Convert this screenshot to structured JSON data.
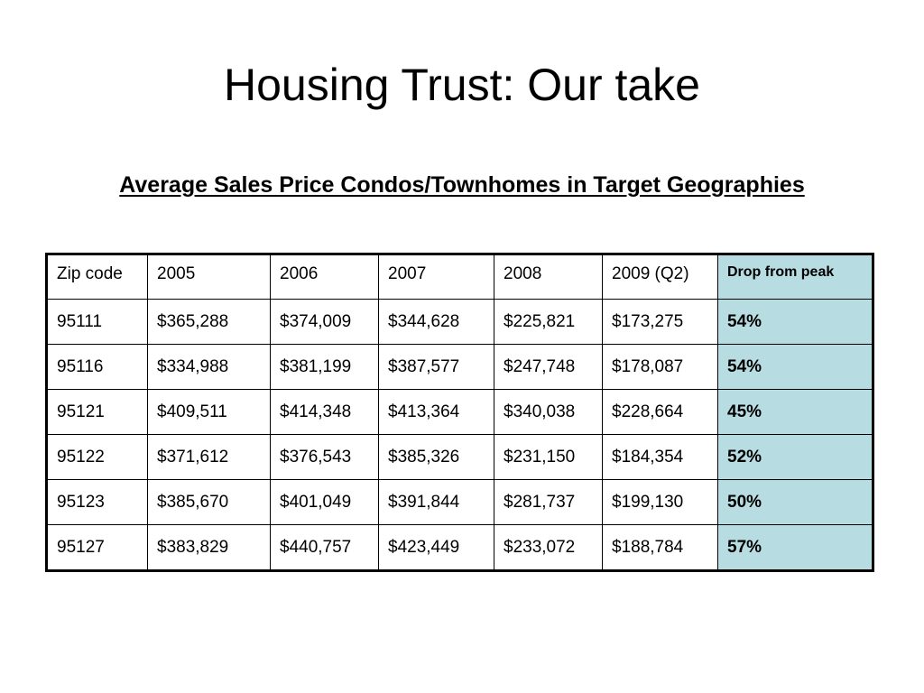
{
  "slide": {
    "title": "Housing Trust: Our take",
    "subtitle": "Average Sales Price Condos/Townhomes in Target Geographies"
  },
  "table": {
    "headers": [
      "Zip code",
      "2005",
      "2006",
      "2007",
      "2008",
      "2009 (Q2)",
      "Drop from peak"
    ],
    "rows": [
      [
        "95111",
        "$365,288",
        "$374,009",
        "$344,628",
        "$225,821",
        "$173,275",
        "54%"
      ],
      [
        "95116",
        "$334,988",
        "$381,199",
        "$387,577",
        "$247,748",
        "$178,087",
        "54%"
      ],
      [
        "95121",
        "$409,511",
        "$414,348",
        "$413,364",
        "$340,038",
        "$228,664",
        "45%"
      ],
      [
        "95122",
        "$371,612",
        "$376,543",
        "$385,326",
        "$231,150",
        "$184,354",
        "52%"
      ],
      [
        "95123",
        "$385,670",
        "$401,049",
        "$391,844",
        "$281,737",
        "$199,130",
        "50%"
      ],
      [
        "95127",
        "$383,829",
        "$440,757",
        "$423,449",
        "$233,072",
        "$188,784",
        "57%"
      ]
    ],
    "highlight_color": "#b7dde2"
  }
}
